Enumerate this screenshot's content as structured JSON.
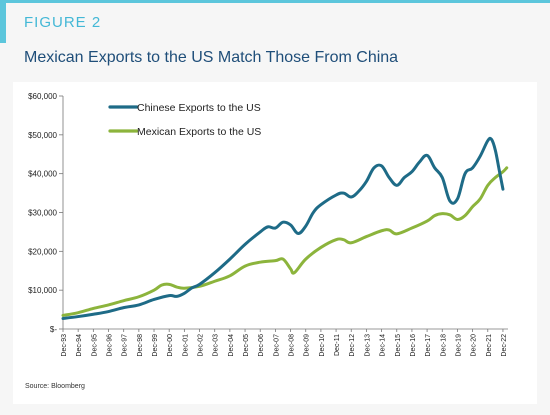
{
  "figure": {
    "label": "FIGURE 2",
    "title": "Mexican Exports to the US Match Those From China",
    "source": "Source: Bloomberg"
  },
  "colors": {
    "accent": "#5cc6dc",
    "title": "#1f4e79",
    "china": "#1e6b87",
    "mexico": "#8cb43c"
  },
  "chart_data": {
    "type": "line",
    "legend_position": "top-left",
    "grid": false,
    "ylim": [
      0,
      60000
    ],
    "yticks": [
      0,
      10000,
      20000,
      30000,
      40000,
      50000,
      60000
    ],
    "ytick_labels": [
      "$-",
      "$10,000",
      "$20,000",
      "$30,000",
      "$40,000",
      "$50,000",
      "$60,000"
    ],
    "xlim": [
      1993.917,
      2023.25
    ],
    "xtick_years": [
      1993.917,
      1994.917,
      1995.917,
      1996.917,
      1997.917,
      1998.917,
      1999.917,
      2000.917,
      2001.917,
      2002.917,
      2003.917,
      2004.917,
      2005.917,
      2006.917,
      2007.917,
      2008.917,
      2009.917,
      2010.917,
      2011.917,
      2012.917,
      2013.917,
      2014.917,
      2015.917,
      2016.917,
      2017.917,
      2018.917,
      2019.917,
      2020.917,
      2021.917,
      2022.917
    ],
    "xtick_labels": [
      "Dec-93",
      "Dec-94",
      "Dec-95",
      "Dec-96",
      "Dec-97",
      "Dec-98",
      "Dec-99",
      "Dec-00",
      "Dec-01",
      "Dec-02",
      "Dec-03",
      "Dec-04",
      "Dec-05",
      "Dec-06",
      "Dec-07",
      "Dec-08",
      "Dec-09",
      "Dec-10",
      "Dec-11",
      "Dec-12",
      "Dec-13",
      "Dec-14",
      "Dec-15",
      "Dec-16",
      "Dec-17",
      "Dec-18",
      "Dec-19",
      "Dec-20",
      "Dec-21",
      "Dec-22"
    ],
    "series": [
      {
        "name": "Chinese Exports to the US",
        "color": "#1e6b87",
        "points": [
          [
            1993.917,
            2700
          ],
          [
            1994.917,
            3200
          ],
          [
            1995.917,
            3800
          ],
          [
            1996.917,
            4500
          ],
          [
            1997.917,
            5500
          ],
          [
            1998.917,
            6200
          ],
          [
            1999.917,
            7600
          ],
          [
            2000.917,
            8600
          ],
          [
            2001.417,
            8400
          ],
          [
            2001.917,
            9200
          ],
          [
            2002.417,
            10600
          ],
          [
            2002.917,
            11500
          ],
          [
            2003.917,
            14500
          ],
          [
            2004.917,
            18000
          ],
          [
            2005.917,
            21800
          ],
          [
            2006.917,
            25000
          ],
          [
            2007.417,
            26300
          ],
          [
            2007.917,
            26000
          ],
          [
            2008.417,
            27500
          ],
          [
            2008.917,
            26800
          ],
          [
            2009.417,
            24600
          ],
          [
            2009.917,
            26500
          ],
          [
            2010.417,
            30000
          ],
          [
            2010.917,
            32000
          ],
          [
            2011.917,
            34500
          ],
          [
            2012.417,
            35000
          ],
          [
            2012.917,
            34000
          ],
          [
            2013.417,
            35500
          ],
          [
            2013.917,
            38000
          ],
          [
            2014.417,
            41500
          ],
          [
            2014.917,
            42000
          ],
          [
            2015.417,
            39000
          ],
          [
            2015.917,
            37000
          ],
          [
            2016.417,
            39000
          ],
          [
            2016.917,
            40500
          ],
          [
            2017.417,
            43000
          ],
          [
            2017.917,
            44700
          ],
          [
            2018.417,
            41500
          ],
          [
            2018.917,
            39000
          ],
          [
            2019.417,
            33000
          ],
          [
            2019.917,
            33500
          ],
          [
            2020.417,
            40000
          ],
          [
            2020.917,
            41500
          ],
          [
            2021.417,
            44500
          ],
          [
            2021.917,
            48500
          ],
          [
            2022.167,
            48800
          ],
          [
            2022.417,
            46000
          ],
          [
            2022.667,
            41000
          ],
          [
            2022.917,
            36000
          ]
        ]
      },
      {
        "name": "Mexican Exports to the US",
        "color": "#8cb43c",
        "points": [
          [
            1993.917,
            3500
          ],
          [
            1994.917,
            4200
          ],
          [
            1995.917,
            5300
          ],
          [
            1996.917,
            6200
          ],
          [
            1997.917,
            7300
          ],
          [
            1998.917,
            8300
          ],
          [
            1999.917,
            10000
          ],
          [
            2000.417,
            11300
          ],
          [
            2000.917,
            11500
          ],
          [
            2001.417,
            10800
          ],
          [
            2001.917,
            10500
          ],
          [
            2002.917,
            11000
          ],
          [
            2003.917,
            12300
          ],
          [
            2004.917,
            13700
          ],
          [
            2005.917,
            16200
          ],
          [
            2006.917,
            17200
          ],
          [
            2007.917,
            17600
          ],
          [
            2008.417,
            18000
          ],
          [
            2008.917,
            15500
          ],
          [
            2009.167,
            14500
          ],
          [
            2009.917,
            18000
          ],
          [
            2010.917,
            21000
          ],
          [
            2011.917,
            23000
          ],
          [
            2012.417,
            23000
          ],
          [
            2012.917,
            22200
          ],
          [
            2013.917,
            23800
          ],
          [
            2014.917,
            25300
          ],
          [
            2015.417,
            25500
          ],
          [
            2015.917,
            24500
          ],
          [
            2016.917,
            26000
          ],
          [
            2017.917,
            27800
          ],
          [
            2018.417,
            29200
          ],
          [
            2018.917,
            29700
          ],
          [
            2019.417,
            29400
          ],
          [
            2019.917,
            28200
          ],
          [
            2020.417,
            29200
          ],
          [
            2020.917,
            31500
          ],
          [
            2021.417,
            33500
          ],
          [
            2021.917,
            37000
          ],
          [
            2022.417,
            39000
          ],
          [
            2022.917,
            40500
          ],
          [
            2023.167,
            41500
          ]
        ]
      }
    ]
  }
}
